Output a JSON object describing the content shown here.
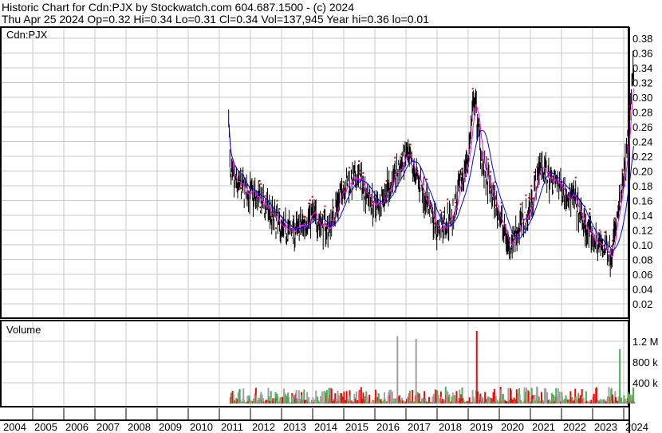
{
  "header": {
    "title": "Historic Chart for Cdn:PJX by Stockwatch.com 604.687.1500 - (c) 2024",
    "quote": "Thu Apr 25 2024  Op=0.32  Hi=0.34  Lo=0.31  Cl=0.34  Vol=137,945  Year hi=0.36  lo=0.01"
  },
  "chart_data": [
    {
      "type": "line",
      "title": "Cdn:PJX",
      "ylim": [
        0,
        0.39
      ],
      "yticks": [
        "0.38",
        "0.36",
        "0.34",
        "0.32",
        "0.30",
        "0.28",
        "0.26",
        "0.24",
        "0.22",
        "0.20",
        "0.18",
        "0.16",
        "0.14",
        "0.12",
        "0.10",
        "0.08",
        "0.06",
        "0.04",
        "0.02"
      ],
      "xticks": [
        "2004",
        "2005",
        "2006",
        "2007",
        "2008",
        "2009",
        "2010",
        "2011",
        "2012",
        "2013",
        "2014",
        "2015",
        "2016",
        "2017",
        "2018",
        "2019",
        "2020",
        "2021",
        "2022",
        "2023",
        "2024"
      ],
      "series": [
        {
          "x": [
            2011.3,
            2011.35,
            2011.6,
            2012.0,
            2012.5,
            2013.0,
            2013.5,
            2014.0,
            2014.5,
            2015.0,
            2015.5,
            2016.0,
            2016.5,
            2017.0,
            2017.5,
            2018.0,
            2018.5,
            2019.0,
            2019.2,
            2019.5,
            2020.0,
            2020.3,
            2020.6,
            2021.0,
            2021.3,
            2021.6,
            2022.0,
            2022.4,
            2022.8,
            2023.2,
            2023.6,
            2023.9,
            2024.1,
            2024.3
          ],
          "y": [
            0.28,
            0.19,
            0.18,
            0.17,
            0.15,
            0.12,
            0.12,
            0.14,
            0.12,
            0.18,
            0.19,
            0.15,
            0.18,
            0.22,
            0.18,
            0.12,
            0.14,
            0.22,
            0.3,
            0.2,
            0.14,
            0.1,
            0.12,
            0.15,
            0.21,
            0.19,
            0.18,
            0.16,
            0.12,
            0.1,
            0.09,
            0.16,
            0.22,
            0.34
          ]
        }
      ],
      "moving_averages": [
        {
          "color": "#ff00ff"
        },
        {
          "color": "#0000ff"
        }
      ]
    },
    {
      "type": "bar",
      "title": "Volume",
      "yticks": [
        "1.2 M",
        "800 k",
        "400 k"
      ],
      "colors": {
        "up": "#4cb050",
        "down": "#ff0000",
        "flat": "#a0a0a0"
      },
      "peaks": [
        {
          "x": 2019.25,
          "value": 1400000
        },
        {
          "x": 2023.85,
          "value": 1050000
        },
        {
          "x": 2016.7,
          "value": 1300000
        },
        {
          "x": 2017.3,
          "value": 1250000
        }
      ]
    }
  ]
}
